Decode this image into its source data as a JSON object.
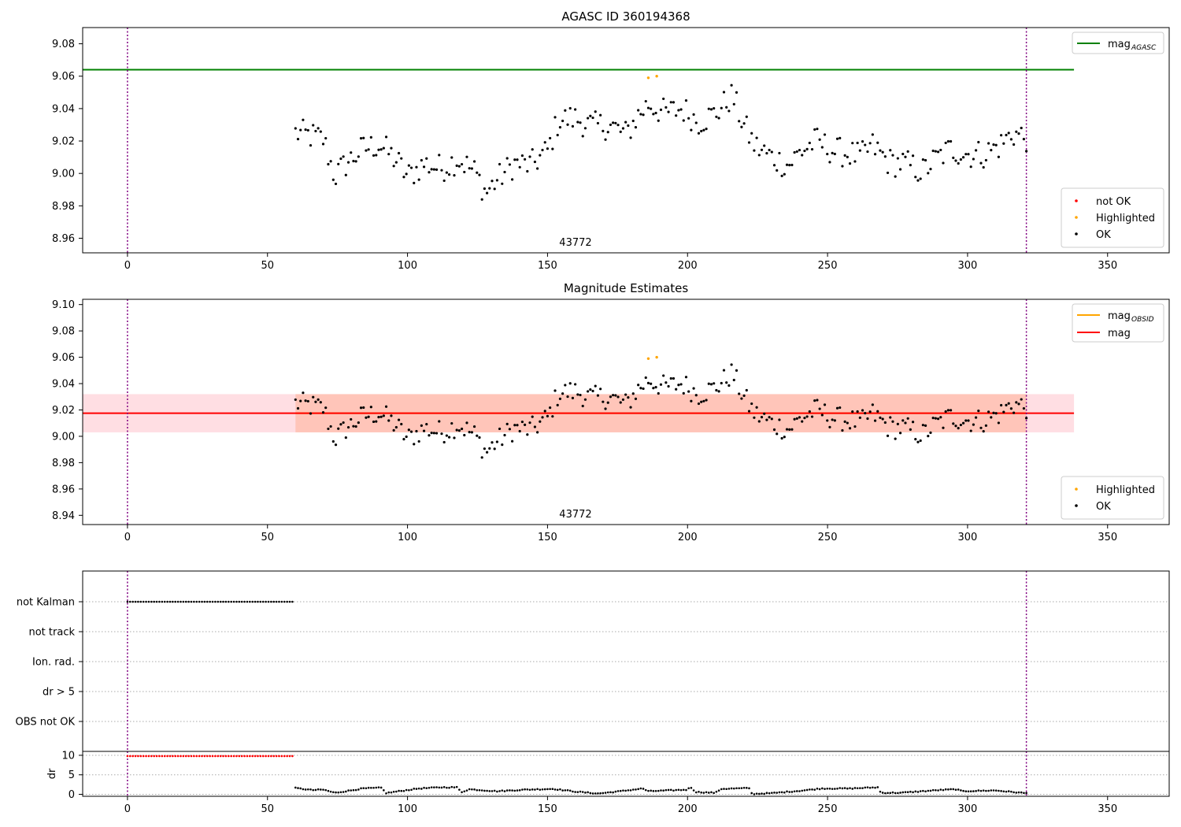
{
  "colors": {
    "agasc_line": "#008000",
    "obsid_line": "#ffa500",
    "mag_line": "#ff0000",
    "band_inner": "#ffa07a",
    "band_outer": "#ffb6c1",
    "ok": "#000000",
    "highlighted": "#ffa500",
    "not_ok": "#ff0000",
    "vline": "#800080"
  },
  "chart_data": [
    {
      "id": "agasc",
      "type": "scatter",
      "title": "AGASC ID 360194368",
      "xlim": [
        -16,
        372
      ],
      "ylim": [
        8.951,
        9.09
      ],
      "x_ticks": [
        0,
        50,
        100,
        150,
        200,
        250,
        300,
        350
      ],
      "y_ticks": [
        8.96,
        8.98,
        9.0,
        9.02,
        9.04,
        9.06,
        9.08
      ],
      "obsid_label": "43772",
      "obsid_label_x": 160,
      "vlines": [
        0,
        321
      ],
      "hlines": [
        {
          "y": 9.064,
          "x0": -16,
          "x1": 338,
          "color": "agasc_line"
        }
      ],
      "line_legend": [
        {
          "main": "mag",
          "sub": "AGASC",
          "color": "agasc_line"
        }
      ],
      "marker_legend": [
        {
          "label": "not OK",
          "color": "not_ok"
        },
        {
          "label": "Highlighted",
          "color": "highlighted"
        },
        {
          "label": "OK",
          "color": "ok"
        }
      ],
      "highlighted": [
        [
          186,
          9.059
        ],
        [
          189,
          9.06
        ]
      ]
    },
    {
      "id": "estimates",
      "type": "scatter",
      "title": "Magnitude Estimates",
      "xlim": [
        -16,
        372
      ],
      "ylim": [
        8.933,
        9.104
      ],
      "x_ticks": [
        0,
        50,
        100,
        150,
        200,
        250,
        300,
        350
      ],
      "y_ticks": [
        8.94,
        8.96,
        8.98,
        9.0,
        9.02,
        9.04,
        9.06,
        9.08,
        9.1
      ],
      "obsid_label": "43772",
      "obsid_label_x": 160,
      "vlines": [
        0,
        321
      ],
      "band_outer": {
        "y0": 9.003,
        "y1": 9.032,
        "x0": -16,
        "x1": 338
      },
      "band_inner": {
        "y0": 9.003,
        "y1": 9.032,
        "x0": 60,
        "x1": 321
      },
      "hlines": [
        {
          "y": 9.0175,
          "x0": 60,
          "x1": 321,
          "color": "obsid_line"
        },
        {
          "y": 9.0175,
          "x0": -16,
          "x1": 338,
          "color": "mag_line"
        }
      ],
      "line_legend": [
        {
          "main": "mag",
          "sub": "OBSID",
          "color": "obsid_line"
        },
        {
          "main": "mag",
          "sub": "",
          "color": "mag_line"
        }
      ],
      "marker_legend": [
        {
          "label": "Highlighted",
          "color": "highlighted"
        },
        {
          "label": "OK",
          "color": "ok"
        }
      ],
      "highlighted": [
        [
          186,
          9.059
        ],
        [
          189,
          9.06
        ]
      ]
    },
    {
      "id": "flags",
      "type": "scatter",
      "xlim": [
        -16,
        372
      ],
      "categories": [
        "not Kalman",
        "not track",
        "Ion. rad.",
        "dr > 5",
        "OBS not OK"
      ],
      "flag_series": [
        {
          "category": "not Kalman",
          "x_start": 0,
          "x_end": 59,
          "step": 0.95
        }
      ],
      "vlines": [
        0,
        321
      ]
    },
    {
      "id": "dr",
      "type": "scatter",
      "ylabel": "dr",
      "xlim": [
        -16,
        372
      ],
      "ylim": [
        -0.5,
        11
      ],
      "y_ticks": [
        0,
        5,
        10
      ],
      "x_ticks": [
        0,
        50,
        100,
        150,
        200,
        250,
        300,
        350
      ],
      "vlines": [
        0,
        321
      ],
      "high_series": {
        "x_start": 0,
        "x_end": 59,
        "step": 0.95,
        "value": 9.8
      },
      "dr_knots": [
        [
          60,
          1.6
        ],
        [
          66,
          1.1
        ],
        [
          70,
          1.2
        ],
        [
          74,
          0.4
        ],
        [
          78,
          0.8
        ],
        [
          84,
          1.5
        ],
        [
          91,
          1.7
        ],
        [
          92,
          0.3
        ],
        [
          96,
          0.7
        ],
        [
          104,
          1.5
        ],
        [
          112,
          1.8
        ],
        [
          118,
          1.8
        ],
        [
          119,
          0.5
        ],
        [
          122,
          1.3
        ],
        [
          132,
          0.8
        ],
        [
          142,
          1.2
        ],
        [
          152,
          1.4
        ],
        [
          160,
          0.7
        ],
        [
          168,
          0.2
        ],
        [
          176,
          0.8
        ],
        [
          184,
          1.5
        ],
        [
          186,
          0.8
        ],
        [
          200,
          1.2
        ],
        [
          201,
          1.9
        ],
        [
          203,
          0.6
        ],
        [
          210,
          0.4
        ],
        [
          212,
          1.4
        ],
        [
          222,
          1.6
        ],
        [
          223,
          0.1
        ],
        [
          230,
          0.3
        ],
        [
          240,
          0.9
        ],
        [
          248,
          1.5
        ],
        [
          258,
          1.5
        ],
        [
          268,
          1.8
        ],
        [
          269,
          0.4
        ],
        [
          276,
          0.4
        ],
        [
          290,
          1.1
        ],
        [
          296,
          1.3
        ],
        [
          298,
          0.8
        ],
        [
          310,
          1.0
        ],
        [
          316,
          0.6
        ],
        [
          321,
          0.3
        ]
      ]
    }
  ],
  "mag_knots": [
    [
      60,
      9.025
    ],
    [
      66,
      9.023
    ],
    [
      70,
      9.021
    ],
    [
      74,
      8.998
    ],
    [
      78,
      9.006
    ],
    [
      84,
      9.015
    ],
    [
      90,
      9.018
    ],
    [
      96,
      9.008
    ],
    [
      100,
      8.998
    ],
    [
      106,
      9.006
    ],
    [
      112,
      9.003
    ],
    [
      118,
      9.009
    ],
    [
      124,
      9.001
    ],
    [
      128,
      8.988
    ],
    [
      132,
      8.996
    ],
    [
      138,
      9.006
    ],
    [
      144,
      9.005
    ],
    [
      150,
      9.014
    ],
    [
      154,
      9.033
    ],
    [
      160,
      9.034
    ],
    [
      166,
      9.029
    ],
    [
      172,
      9.03
    ],
    [
      178,
      9.024
    ],
    [
      182,
      9.035
    ],
    [
      186,
      9.043
    ],
    [
      192,
      9.037
    ],
    [
      198,
      9.04
    ],
    [
      204,
      9.032
    ],
    [
      210,
      9.037
    ],
    [
      216,
      9.048
    ],
    [
      220,
      9.03
    ],
    [
      224,
      9.017
    ],
    [
      230,
      9.01
    ],
    [
      236,
      9.005
    ],
    [
      240,
      9.013
    ],
    [
      246,
      9.02
    ],
    [
      252,
      9.014
    ],
    [
      258,
      9.012
    ],
    [
      262,
      9.01
    ],
    [
      266,
      9.017
    ],
    [
      272,
      9.007
    ],
    [
      278,
      9.006
    ],
    [
      284,
      9.001
    ],
    [
      288,
      9.008
    ],
    [
      294,
      9.015
    ],
    [
      300,
      9.012
    ],
    [
      306,
      9.012
    ],
    [
      312,
      9.018
    ],
    [
      316,
      9.025
    ],
    [
      321,
      9.022
    ]
  ]
}
